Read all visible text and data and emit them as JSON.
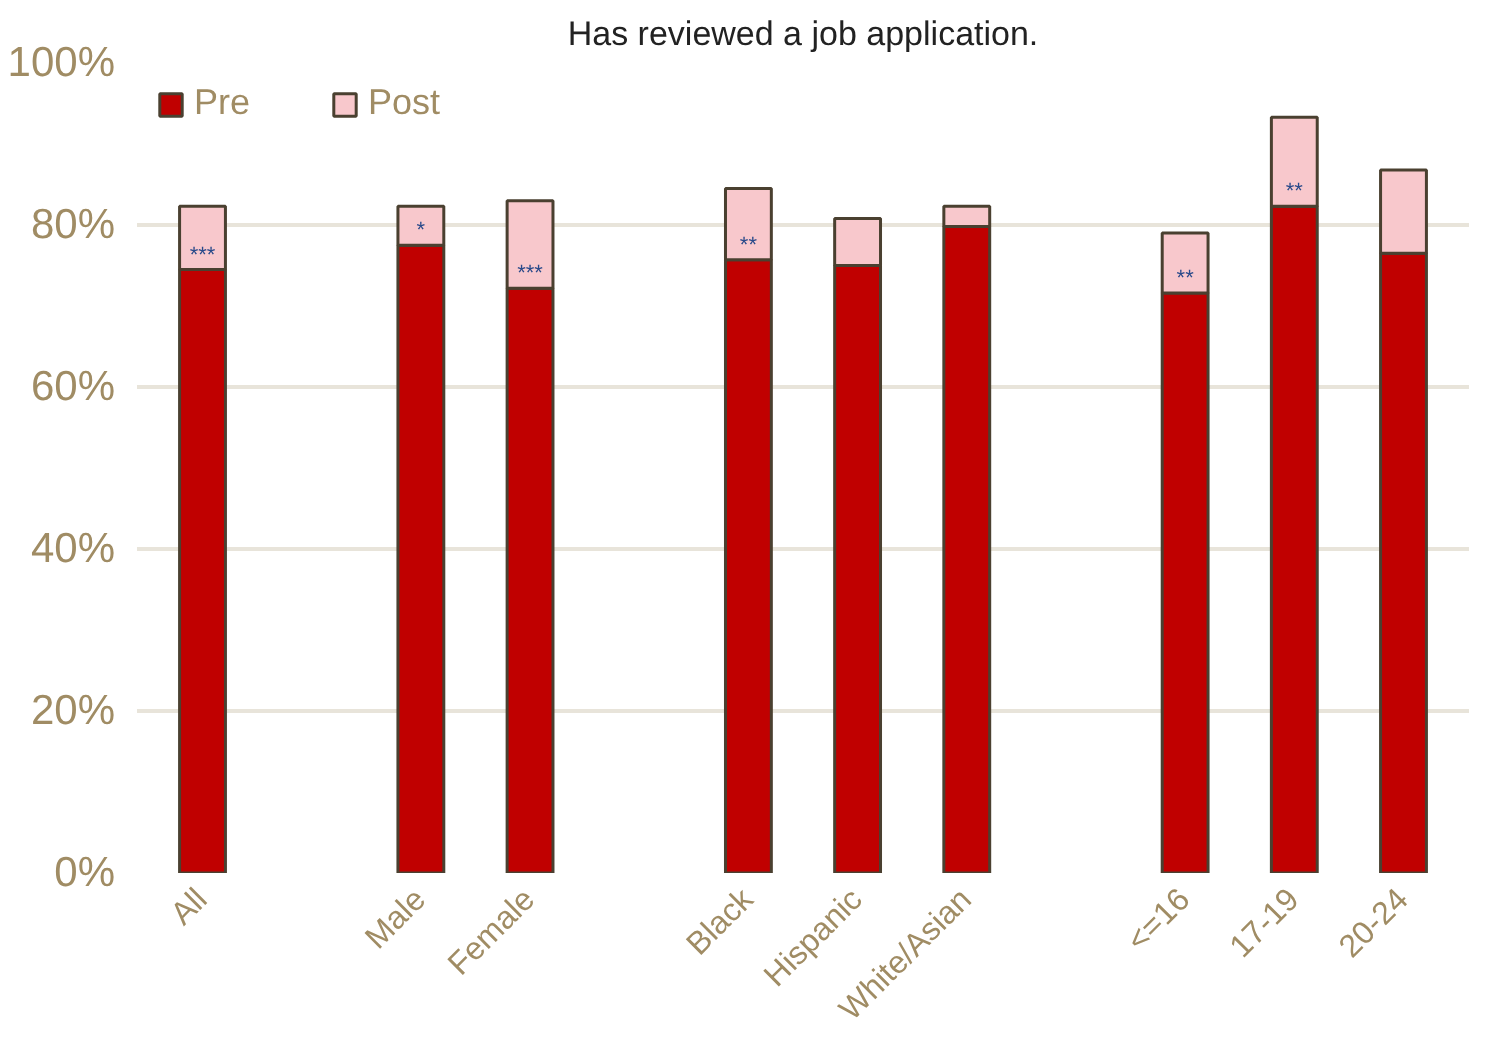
{
  "chart_data": {
    "type": "bar",
    "title": "Has reviewed a job application.",
    "stacked": true,
    "categories": [
      "All",
      null,
      "Male",
      "Female",
      null,
      "Black",
      "Hispanic",
      "White/Asian",
      null,
      "<=16",
      "17-19",
      "20-24"
    ],
    "series": [
      {
        "name": "Pre",
        "color": "#c00000",
        "values": [
          74.5,
          null,
          77.5,
          72.2,
          null,
          75.7,
          75.0,
          79.8,
          null,
          71.6,
          82.3,
          76.5
        ]
      },
      {
        "name": "Post",
        "color": "#f8c8cc",
        "values": [
          7.8,
          null,
          4.8,
          10.8,
          null,
          8.8,
          5.8,
          2.5,
          null,
          7.4,
          11.0,
          10.3
        ]
      }
    ],
    "ylim": [
      0,
      100
    ],
    "yticks": [
      {
        "value": 0,
        "label": "0%"
      },
      {
        "value": 20,
        "label": "20%"
      },
      {
        "value": 40,
        "label": "40%"
      },
      {
        "value": 60,
        "label": "60%"
      },
      {
        "value": 80,
        "label": "80%"
      },
      {
        "value": 100,
        "label": "100%"
      }
    ],
    "grid": "y",
    "legend": "top left",
    "annotations": [
      {
        "text": "***",
        "x": "All",
        "y": 74.5
      },
      {
        "text": "*",
        "x": "Male",
        "y": 77.5
      },
      {
        "text": "***",
        "x": "Female",
        "y": 72.2
      },
      {
        "text": "**",
        "x": "Black",
        "y": 75.7
      },
      {
        "text": "**",
        "x": "<=16",
        "y": 71.6
      },
      {
        "text": "**",
        "x": "17-19",
        "y": 82.3
      }
    ]
  }
}
